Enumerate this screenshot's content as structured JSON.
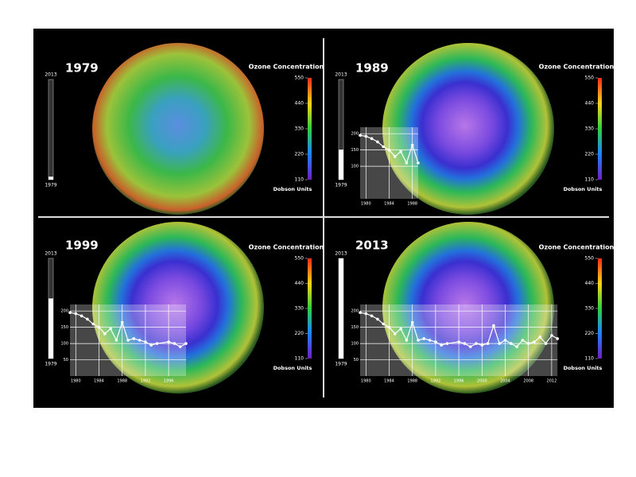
{
  "panels": [
    {
      "year": "1979",
      "legend": {
        "title": "Ozone Concentration",
        "ticks": [
          550,
          440,
          330,
          220,
          110
        ],
        "unit": "Dobson Units"
      },
      "timeline": {
        "top": "2013",
        "bottom": "1979"
      }
    },
    {
      "year": "1989",
      "legend": {
        "title": "Ozone Concentration",
        "ticks": [
          550,
          440,
          330,
          220,
          110
        ],
        "unit": "Dobson Units"
      },
      "timeline": {
        "top": "2013",
        "bottom": "1979"
      },
      "chart": {
        "type": "line",
        "color": "#ffffff",
        "x": [
          1979,
          1980,
          1981,
          1982,
          1983,
          1984,
          1985,
          1986,
          1987,
          1988,
          1989
        ],
        "values": [
          195,
          192,
          185,
          175,
          160,
          150,
          130,
          145,
          110,
          165,
          110
        ],
        "xlim": [
          1979,
          1989
        ],
        "ylim": [
          0,
          220
        ],
        "yticks": [
          100,
          150,
          200
        ],
        "xticks": [
          1980,
          1984,
          1988
        ]
      }
    },
    {
      "year": "1999",
      "legend": {
        "title": "Ozone Concentration",
        "ticks": [
          550,
          440,
          330,
          220,
          110
        ],
        "unit": "Dobson Units"
      },
      "timeline": {
        "top": "2013",
        "bottom": "1979"
      },
      "chart": {
        "type": "line",
        "color": "#ffffff",
        "x": [
          1979,
          1980,
          1981,
          1982,
          1983,
          1984,
          1985,
          1986,
          1987,
          1988,
          1989,
          1990,
          1991,
          1992,
          1993,
          1994,
          1996,
          1997,
          1998,
          1999
        ],
        "values": [
          195,
          192,
          185,
          175,
          160,
          150,
          130,
          145,
          110,
          165,
          110,
          115,
          110,
          105,
          95,
          100,
          105,
          100,
          90,
          100
        ],
        "xlim": [
          1979,
          1999
        ],
        "ylim": [
          0,
          220
        ],
        "yticks": [
          50,
          100,
          150,
          200
        ],
        "xticks": [
          1980,
          1984,
          1988,
          1992,
          1996
        ]
      }
    },
    {
      "year": "2013",
      "legend": {
        "title": "Ozone Concentration",
        "ticks": [
          550,
          440,
          330,
          220,
          110
        ],
        "unit": "Dobson Units"
      },
      "timeline": {
        "top": "2013",
        "bottom": "1979"
      },
      "chart": {
        "type": "line",
        "color": "#ffffff",
        "x": [
          1979,
          1980,
          1981,
          1982,
          1983,
          1984,
          1985,
          1986,
          1987,
          1988,
          1989,
          1990,
          1991,
          1992,
          1993,
          1994,
          1996,
          1997,
          1998,
          1999,
          2000,
          2001,
          2002,
          2003,
          2004,
          2005,
          2006,
          2007,
          2008,
          2009,
          2010,
          2011,
          2012,
          2013
        ],
        "values": [
          195,
          192,
          185,
          175,
          160,
          150,
          130,
          145,
          110,
          165,
          110,
          115,
          110,
          105,
          95,
          100,
          105,
          100,
          90,
          100,
          95,
          100,
          155,
          100,
          110,
          100,
          90,
          110,
          100,
          105,
          120,
          100,
          125,
          115
        ],
        "xlim": [
          1979,
          2013
        ],
        "ylim": [
          0,
          220
        ],
        "yticks": [
          50,
          100,
          150,
          200
        ],
        "xticks": [
          1980,
          1984,
          1988,
          1992,
          1996,
          2000,
          2004,
          2008,
          2012
        ]
      }
    }
  ]
}
